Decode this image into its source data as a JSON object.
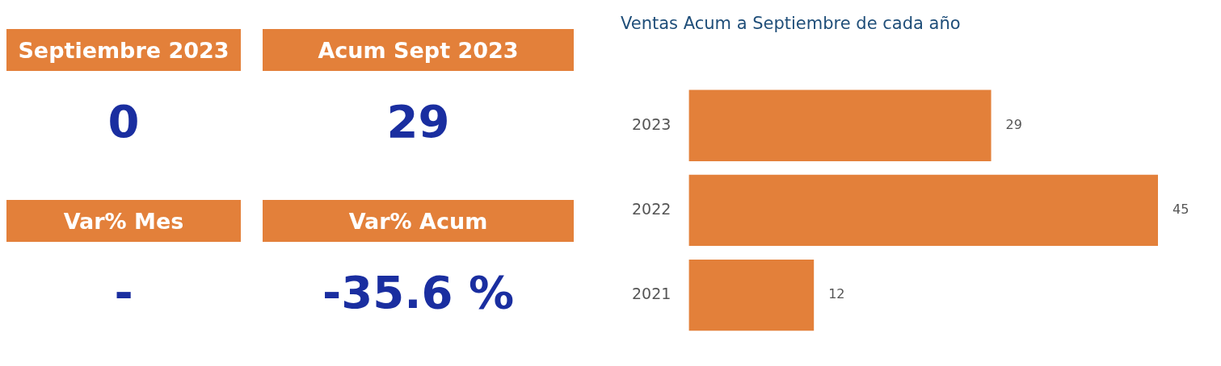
{
  "chart_data": [
    {
      "type": "other",
      "categories": [
        "Septiembre 2023",
        "Acum Sept 2023",
        "Var% Mes",
        "Var% Acum"
      ],
      "value_labels": [
        "0",
        "29",
        "-",
        "-35.6 %"
      ],
      "color": "#e3803a"
    },
    {
      "type": "bar",
      "title": "Ventas Acum a Septiembre de cada año",
      "orientation": "horizontal",
      "categories": [
        "2023",
        "2022",
        "2021"
      ],
      "values": [
        29,
        45,
        12
      ],
      "color": "#e3803a",
      "data_labels": true
    }
  ]
}
